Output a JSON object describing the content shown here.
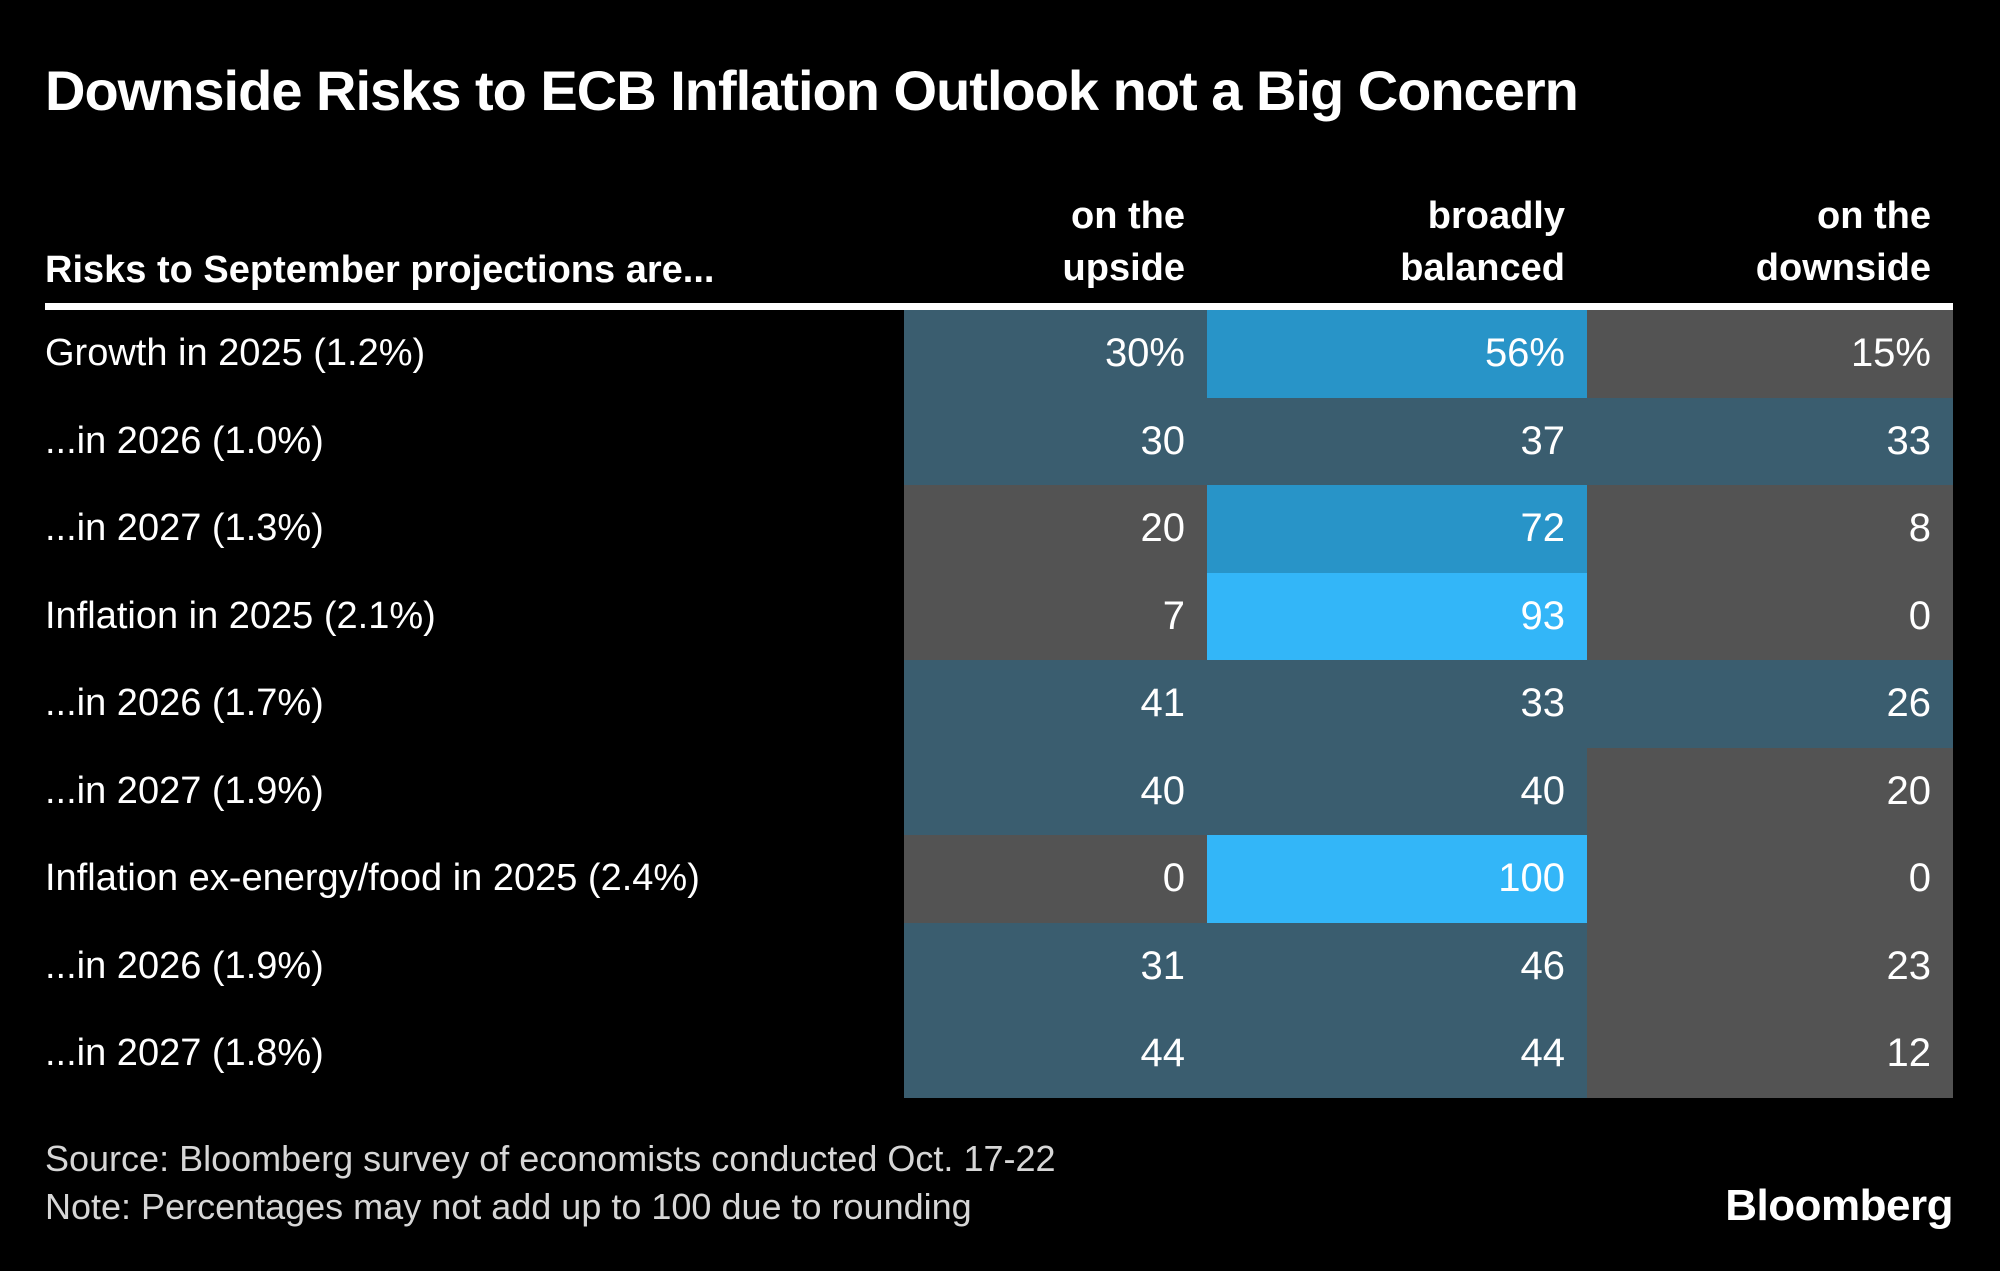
{
  "header": {
    "title": "Downside Risks to ECB Inflation Outlook not a Big Concern"
  },
  "chart_data": {
    "type": "heatmap",
    "title": "Downside Risks to ECB Inflation Outlook not a Big Concern",
    "row_header": "Risks to September projections are...",
    "columns": [
      {
        "label": "on the upside",
        "line1": "on the",
        "line2": "upside"
      },
      {
        "label": "broadly balanced",
        "line1": "broadly",
        "line2": "balanced"
      },
      {
        "label": "on the downside",
        "line1": "on the",
        "line2": "downside"
      }
    ],
    "rows": [
      {
        "label": "Growth in 2025 (1.2%)",
        "values": [
          30,
          56,
          15
        ],
        "display": [
          "30%",
          "56%",
          "15%"
        ]
      },
      {
        "label": "...in 2026 (1.0%)",
        "values": [
          30,
          37,
          33
        ],
        "display": [
          "30",
          "37",
          "33"
        ]
      },
      {
        "label": "...in 2027 (1.3%)",
        "values": [
          20,
          72,
          8
        ],
        "display": [
          "20",
          "72",
          "8"
        ]
      },
      {
        "label": "Inflation in 2025 (2.1%)",
        "values": [
          7,
          93,
          0
        ],
        "display": [
          "7",
          "93",
          "0"
        ]
      },
      {
        "label": "...in 2026 (1.7%)",
        "values": [
          41,
          33,
          26
        ],
        "display": [
          "41",
          "33",
          "26"
        ]
      },
      {
        "label": "...in 2027 (1.9%)",
        "values": [
          40,
          40,
          20
        ],
        "display": [
          "40",
          "40",
          "20"
        ]
      },
      {
        "label": "Inflation ex-energy/food in 2025 (2.4%)",
        "values": [
          0,
          100,
          0
        ],
        "display": [
          "0",
          "100",
          "0"
        ]
      },
      {
        "label": "...in 2026 (1.9%)",
        "values": [
          31,
          46,
          23
        ],
        "display": [
          "31",
          "46",
          "23"
        ]
      },
      {
        "label": "...in 2027 (1.8%)",
        "values": [
          44,
          44,
          12
        ],
        "display": [
          "44",
          "44",
          "12"
        ]
      }
    ],
    "color_scale": [
      {
        "min": 93,
        "color": "#33B6F8"
      },
      {
        "min": 56,
        "color": "#2894C8"
      },
      {
        "min": 26,
        "color": "#3A5D6F"
      },
      {
        "min": 0,
        "color": "#535353"
      }
    ],
    "colors": {
      "background": "#000000",
      "rule": "#FFFFFF",
      "text": "#FFFFFF",
      "footer_text": "#D6D6D6"
    }
  },
  "footer": {
    "source": "Source: Bloomberg survey of economists conducted Oct. 17-22",
    "note": "Note: Percentages may not add up to 100 due to rounding",
    "logo": "Bloomberg"
  }
}
